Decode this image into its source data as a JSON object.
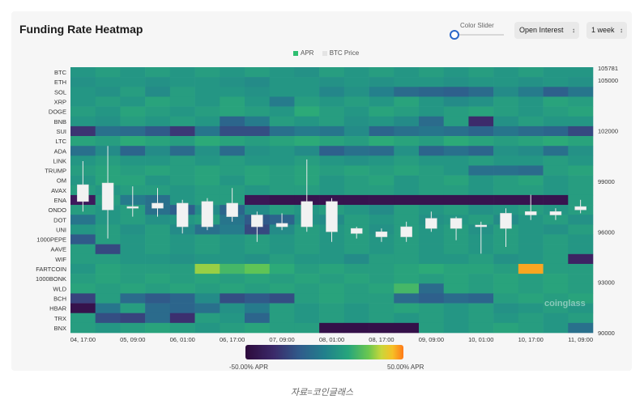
{
  "header": {
    "title": "Funding Rate Heatmap",
    "slider_label": "Color Slider",
    "metric_select": "Open Interest",
    "range_select": "1 week"
  },
  "legend": [
    {
      "label": "APR",
      "color": "#2fbf71"
    },
    {
      "label": "BTC Price",
      "color": "#e4e4e4"
    }
  ],
  "colorbar": {
    "min_label": "-50.00% APR",
    "max_label": "50.00% APR"
  },
  "watermark": "coinglass",
  "caption": "자료=코인글래스",
  "chart_data": {
    "type": "heatmap",
    "title": "Funding Rate Heatmap",
    "y_categories": [
      "BTC",
      "ETH",
      "SOL",
      "XRP",
      "DOGE",
      "BNB",
      "SUI",
      "LTC",
      "ADA",
      "LINK",
      "TRUMP",
      "OM",
      "AVAX",
      "ENA",
      "ONDO",
      "DOT",
      "UNI",
      "1000PEPE",
      "AAVE",
      "WIF",
      "FARTCOIN",
      "1000BONK",
      "WLD",
      "BCH",
      "HBAR",
      "TRX",
      "BNX"
    ],
    "x_tick_labels": [
      "04, 17:00",
      "05, 09:00",
      "06, 01:00",
      "06, 17:00",
      "07, 09:00",
      "08, 01:00",
      "08, 17:00",
      "09, 09:00",
      "10, 01:00",
      "10, 17:00",
      "11, 09:00"
    ],
    "columns": 21,
    "color_range_apr_percent": [
      -50,
      50
    ],
    "apr_matrix": [
      [
        8,
        10,
        8,
        10,
        8,
        10,
        8,
        10,
        8,
        6,
        10,
        8,
        10,
        8,
        10,
        8,
        10,
        8,
        10,
        8,
        8
      ],
      [
        6,
        8,
        8,
        6,
        8,
        8,
        6,
        4,
        8,
        8,
        6,
        8,
        6,
        8,
        8,
        6,
        8,
        8,
        6,
        8,
        6
      ],
      [
        8,
        6,
        10,
        4,
        10,
        8,
        8,
        6,
        8,
        8,
        2,
        6,
        0,
        -8,
        -10,
        -12,
        -8,
        4,
        -2,
        -12,
        -4
      ],
      [
        8,
        10,
        8,
        12,
        10,
        8,
        12,
        8,
        -2,
        10,
        8,
        10,
        8,
        12,
        8,
        4,
        6,
        10,
        8,
        12,
        10
      ],
      [
        10,
        8,
        12,
        10,
        8,
        10,
        12,
        10,
        8,
        14,
        10,
        8,
        12,
        10,
        8,
        10,
        12,
        10,
        8,
        10,
        12
      ],
      [
        8,
        6,
        10,
        8,
        10,
        8,
        -10,
        -2,
        10,
        8,
        10,
        6,
        8,
        4,
        -8,
        10,
        -32,
        6,
        10,
        8,
        8
      ],
      [
        -28,
        -6,
        -8,
        -14,
        -26,
        -4,
        -18,
        -18,
        -6,
        -2,
        -4,
        4,
        -10,
        -6,
        -4,
        -6,
        -10,
        -4,
        -8,
        -10,
        -20
      ],
      [
        12,
        10,
        14,
        12,
        10,
        14,
        12,
        10,
        12,
        14,
        12,
        10,
        14,
        12,
        10,
        14,
        12,
        10,
        12,
        14,
        12
      ],
      [
        -6,
        4,
        -10,
        4,
        -8,
        6,
        -8,
        6,
        8,
        4,
        -12,
        -6,
        -8,
        6,
        -10,
        -6,
        -10,
        6,
        4,
        -6,
        6
      ],
      [
        8,
        10,
        8,
        8,
        10,
        8,
        10,
        8,
        8,
        10,
        8,
        6,
        8,
        10,
        8,
        8,
        10,
        8,
        8,
        10,
        8
      ],
      [
        10,
        12,
        10,
        12,
        10,
        12,
        10,
        12,
        10,
        12,
        10,
        12,
        10,
        12,
        10,
        8,
        -6,
        -6,
        -8,
        10,
        12
      ],
      [
        8,
        12,
        12,
        8,
        10,
        12,
        8,
        12,
        10,
        12,
        8,
        10,
        12,
        8,
        10,
        12,
        8,
        10,
        12,
        8,
        10
      ],
      [
        10,
        8,
        10,
        10,
        8,
        10,
        10,
        8,
        10,
        10,
        8,
        10,
        10,
        8,
        10,
        10,
        8,
        10,
        10,
        8,
        10
      ],
      [
        -40,
        10,
        -2,
        -6,
        8,
        10,
        10,
        -42,
        -44,
        -44,
        -44,
        -44,
        -44,
        -44,
        -44,
        -44,
        -44,
        -44,
        -44,
        -44,
        10
      ],
      [
        10,
        8,
        10,
        -6,
        -12,
        4,
        -10,
        4,
        10,
        8,
        10,
        8,
        4,
        10,
        8,
        10,
        6,
        8,
        10,
        8,
        10
      ],
      [
        -4,
        8,
        10,
        6,
        8,
        10,
        -4,
        -14,
        -10,
        6,
        4,
        10,
        8,
        10,
        6,
        8,
        10,
        4,
        8,
        10,
        6
      ],
      [
        8,
        10,
        6,
        10,
        4,
        -6,
        -2,
        -20,
        4,
        10,
        8,
        10,
        6,
        10,
        8,
        10,
        6,
        10,
        8,
        6,
        10
      ],
      [
        -14,
        10,
        8,
        10,
        8,
        10,
        8,
        10,
        8,
        10,
        8,
        10,
        8,
        10,
        8,
        10,
        8,
        10,
        8,
        10,
        8
      ],
      [
        10,
        -20,
        8,
        10,
        8,
        10,
        8,
        10,
        8,
        10,
        8,
        10,
        8,
        10,
        8,
        10,
        8,
        10,
        8,
        10,
        8
      ],
      [
        10,
        10,
        8,
        8,
        6,
        8,
        8,
        6,
        10,
        8,
        8,
        4,
        10,
        10,
        8,
        8,
        10,
        6,
        8,
        10,
        -36
      ],
      [
        8,
        12,
        10,
        10,
        10,
        28,
        18,
        22,
        14,
        10,
        12,
        10,
        10,
        12,
        14,
        12,
        12,
        10,
        45,
        10,
        10
      ],
      [
        10,
        12,
        10,
        12,
        10,
        12,
        10,
        12,
        10,
        12,
        10,
        12,
        10,
        12,
        10,
        12,
        10,
        12,
        10,
        12,
        10
      ],
      [
        12,
        10,
        12,
        10,
        12,
        10,
        12,
        10,
        12,
        10,
        12,
        10,
        12,
        18,
        -8,
        12,
        10,
        12,
        10,
        12,
        10
      ],
      [
        -22,
        10,
        -8,
        -14,
        -10,
        4,
        -18,
        -14,
        -18,
        10,
        12,
        10,
        10,
        -8,
        -12,
        -8,
        -10,
        10,
        12,
        10,
        12
      ],
      [
        -45,
        -4,
        10,
        -8,
        -10,
        -6,
        6,
        -2,
        10,
        8,
        10,
        8,
        10,
        12,
        10,
        8,
        10,
        6,
        8,
        10,
        8
      ],
      [
        10,
        -18,
        -22,
        -8,
        -30,
        10,
        8,
        -10,
        10,
        8,
        10,
        8,
        10,
        8,
        10,
        8,
        10,
        8,
        10,
        8,
        10
      ],
      [
        10,
        8,
        10,
        12,
        10,
        8,
        10,
        12,
        10,
        10,
        -46,
        -46,
        -46,
        -46,
        10,
        8,
        10,
        12,
        10,
        8,
        -6
      ]
    ],
    "btc_price_axis": {
      "ticks": [
        90000,
        93000,
        96000,
        99000,
        102000,
        105000
      ],
      "max_label": 105781,
      "ylim": [
        90000,
        105781
      ]
    },
    "btc_price_candles": [
      {
        "open": 98800,
        "close": 97800,
        "high": 100200,
        "low": 97200
      },
      {
        "open": 98900,
        "close": 97300,
        "high": 101100,
        "low": 95600
      },
      {
        "open": 97500,
        "close": 97400,
        "high": 98700,
        "low": 96900
      },
      {
        "open": 97700,
        "close": 97400,
        "high": 98600,
        "low": 96900
      },
      {
        "open": 97700,
        "close": 96300,
        "high": 97900,
        "low": 95900
      },
      {
        "open": 97800,
        "close": 96300,
        "high": 98000,
        "low": 96100
      },
      {
        "open": 97700,
        "close": 96900,
        "high": 98600,
        "low": 96600
      },
      {
        "open": 97000,
        "close": 96300,
        "high": 97200,
        "low": 95400
      },
      {
        "open": 96500,
        "close": 96300,
        "high": 97100,
        "low": 96100
      },
      {
        "open": 97800,
        "close": 96300,
        "high": 100300,
        "low": 96000
      },
      {
        "open": 97800,
        "close": 96000,
        "high": 98000,
        "low": 95400
      },
      {
        "open": 96200,
        "close": 95900,
        "high": 96300,
        "low": 95600
      },
      {
        "open": 96000,
        "close": 95700,
        "high": 96200,
        "low": 95400
      },
      {
        "open": 96300,
        "close": 95700,
        "high": 96600,
        "low": 95400
      },
      {
        "open": 96800,
        "close": 96200,
        "high": 97200,
        "low": 96000
      },
      {
        "open": 96800,
        "close": 96200,
        "high": 96900,
        "low": 95500
      },
      {
        "open": 96400,
        "close": 96300,
        "high": 96600,
        "low": 94700
      },
      {
        "open": 97100,
        "close": 96200,
        "high": 97400,
        "low": 95100
      },
      {
        "open": 97200,
        "close": 97000,
        "high": 98200,
        "low": 96700
      },
      {
        "open": 97200,
        "close": 97000,
        "high": 97400,
        "low": 96700
      },
      {
        "open": 97500,
        "close": 97300,
        "high": 97900,
        "low": 97100
      }
    ]
  }
}
